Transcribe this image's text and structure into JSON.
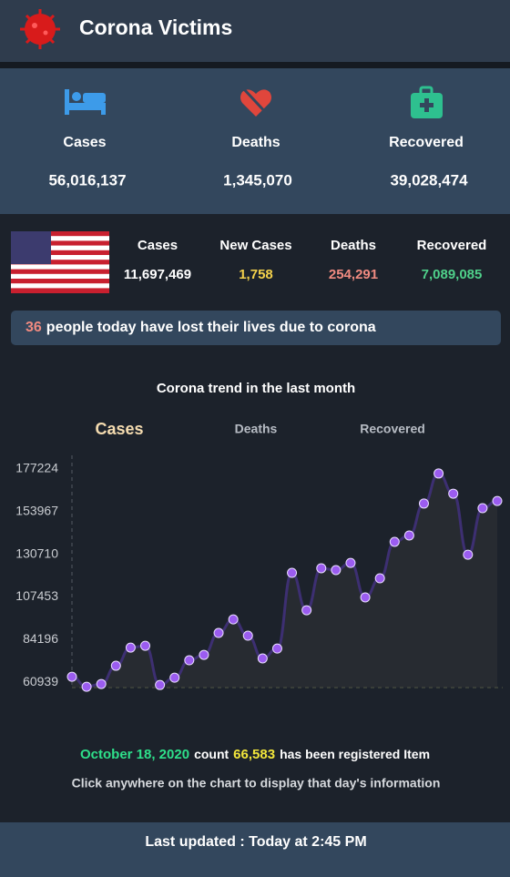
{
  "header": {
    "title": "Corona Victims"
  },
  "global": [
    {
      "label": "Cases",
      "value": "56,016,137"
    },
    {
      "label": "Deaths",
      "value": "1,345,070"
    },
    {
      "label": "Recovered",
      "value": "39,028,474"
    }
  ],
  "country": [
    {
      "label": "Cases",
      "value": "11,697,469"
    },
    {
      "label": "New Cases",
      "value": "1,758"
    },
    {
      "label": "Deaths",
      "value": "254,291"
    },
    {
      "label": "Recovered",
      "value": "7,089,085"
    }
  ],
  "banner": {
    "count": "36",
    "text": "people today have lost their lives due to corona"
  },
  "chart_data": {
    "type": "line",
    "title": "Corona trend in the last month",
    "tabs": [
      "Cases",
      "Deaths",
      "Recovered"
    ],
    "values": [
      63900,
      58450,
      59950,
      69900,
      79800,
      80800,
      59400,
      63400,
      72900,
      75850,
      87800,
      95200,
      86300,
      73900,
      79300,
      120600,
      100200,
      123100,
      122100,
      126000,
      107200,
      117600,
      137500,
      141000,
      158400,
      174800,
      163800,
      130500,
      155900,
      159800
    ],
    "color": "#3d2f72",
    "marker_color": "#9b5cf0",
    "ylim": [
      58000,
      184700
    ],
    "yticks": [
      60939,
      84196,
      107453,
      130710,
      153967,
      177224
    ]
  },
  "selection": {
    "date": "October 18, 2020",
    "count_label": "count",
    "count": "66,583",
    "suffix": "has been registered Item"
  },
  "hint": "Click anywhere on the chart to display that day's information",
  "footer": "Last updated : Today at 2:45 PM"
}
